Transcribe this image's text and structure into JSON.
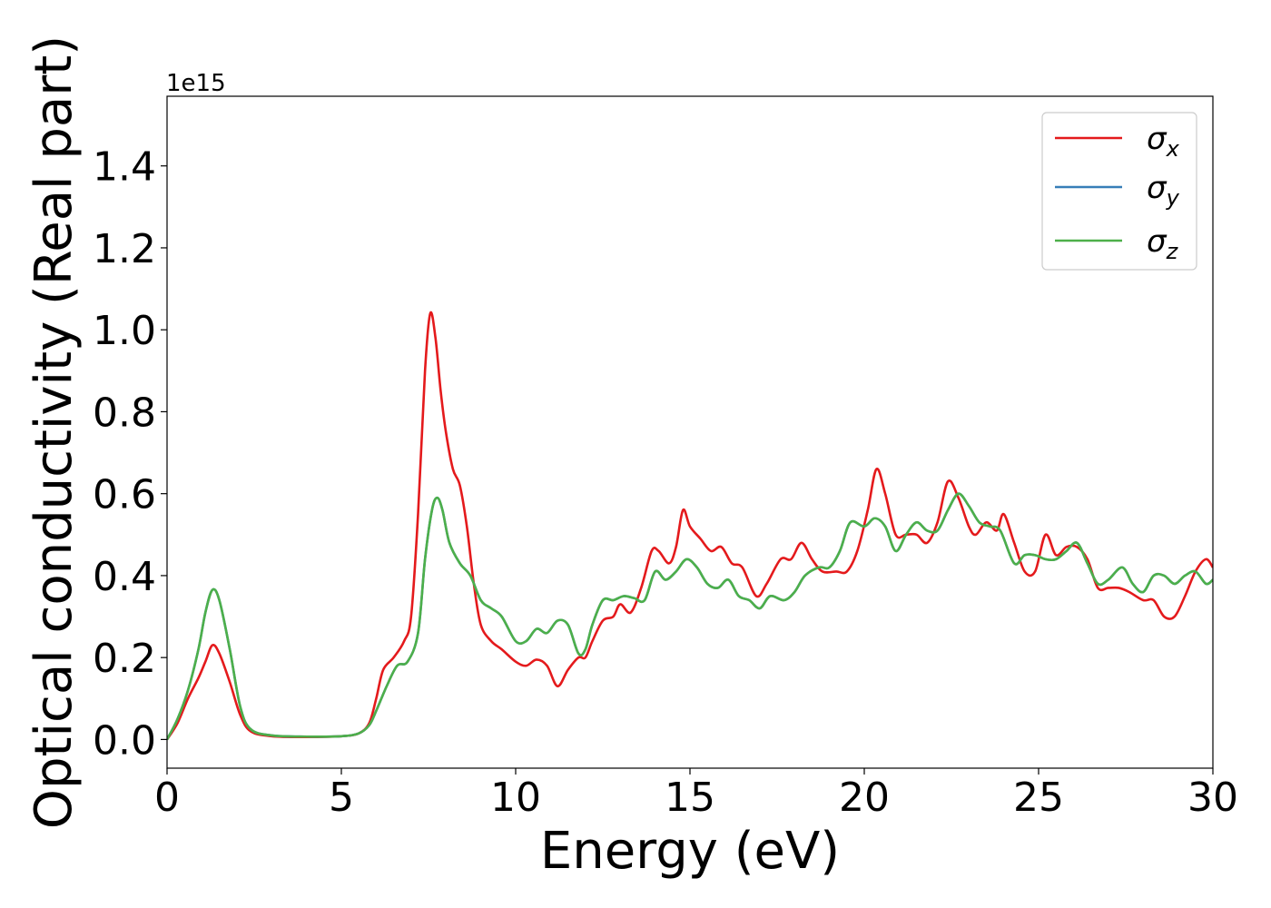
{
  "chart_data": {
    "type": "line",
    "xlabel": "Energy (eV)",
    "ylabel": "Optical conductivity (Real part)",
    "offset_text": "1e15",
    "y_scale_factor": 1000000000000000.0,
    "xlim": [
      0,
      30
    ],
    "ylim": [
      -0.07,
      1.57
    ],
    "x_ticks": [
      0,
      5,
      10,
      15,
      20,
      25,
      30
    ],
    "x_tick_labels": [
      "0",
      "5",
      "10",
      "15",
      "20",
      "25",
      "30"
    ],
    "y_ticks": [
      0.0,
      0.2,
      0.4,
      0.6,
      0.8,
      1.0,
      1.2,
      1.4
    ],
    "y_tick_labels": [
      "0.0",
      "0.2",
      "0.4",
      "0.6",
      "0.8",
      "1.0",
      "1.2",
      "1.4"
    ],
    "grid": false,
    "legend_position": "top-right",
    "series": [
      {
        "name": "σx",
        "label_base": "σ",
        "label_sub": "x",
        "color": "#e41a1c",
        "points": [
          [
            0,
            0
          ],
          [
            0.3,
            0.04
          ],
          [
            0.6,
            0.1
          ],
          [
            0.9,
            0.15
          ],
          [
            1.1,
            0.19
          ],
          [
            1.3,
            0.23
          ],
          [
            1.5,
            0.21
          ],
          [
            1.8,
            0.14
          ],
          [
            2.1,
            0.06
          ],
          [
            2.4,
            0.02
          ],
          [
            3,
            0.008
          ],
          [
            4,
            0.006
          ],
          [
            5,
            0.008
          ],
          [
            5.5,
            0.015
          ],
          [
            5.8,
            0.04
          ],
          [
            6.0,
            0.1
          ],
          [
            6.2,
            0.17
          ],
          [
            6.5,
            0.2
          ],
          [
            6.8,
            0.24
          ],
          [
            7.0,
            0.3
          ],
          [
            7.2,
            0.55
          ],
          [
            7.4,
            0.9
          ],
          [
            7.55,
            1.04
          ],
          [
            7.7,
            0.98
          ],
          [
            7.85,
            0.85
          ],
          [
            8.0,
            0.75
          ],
          [
            8.2,
            0.66
          ],
          [
            8.4,
            0.62
          ],
          [
            8.6,
            0.52
          ],
          [
            8.8,
            0.38
          ],
          [
            9.0,
            0.28
          ],
          [
            9.3,
            0.24
          ],
          [
            9.6,
            0.22
          ],
          [
            10.0,
            0.19
          ],
          [
            10.3,
            0.18
          ],
          [
            10.6,
            0.195
          ],
          [
            10.9,
            0.18
          ],
          [
            11.2,
            0.13
          ],
          [
            11.5,
            0.17
          ],
          [
            11.8,
            0.2
          ],
          [
            12.0,
            0.2
          ],
          [
            12.2,
            0.24
          ],
          [
            12.5,
            0.29
          ],
          [
            12.8,
            0.3
          ],
          [
            13.0,
            0.33
          ],
          [
            13.3,
            0.31
          ],
          [
            13.6,
            0.37
          ],
          [
            13.9,
            0.46
          ],
          [
            14.1,
            0.46
          ],
          [
            14.4,
            0.43
          ],
          [
            14.6,
            0.47
          ],
          [
            14.8,
            0.56
          ],
          [
            15.0,
            0.52
          ],
          [
            15.3,
            0.49
          ],
          [
            15.6,
            0.46
          ],
          [
            15.9,
            0.47
          ],
          [
            16.2,
            0.43
          ],
          [
            16.5,
            0.42
          ],
          [
            16.9,
            0.35
          ],
          [
            17.2,
            0.38
          ],
          [
            17.6,
            0.44
          ],
          [
            17.9,
            0.44
          ],
          [
            18.2,
            0.48
          ],
          [
            18.5,
            0.44
          ],
          [
            18.8,
            0.41
          ],
          [
            19.2,
            0.41
          ],
          [
            19.5,
            0.41
          ],
          [
            19.8,
            0.46
          ],
          [
            20.1,
            0.56
          ],
          [
            20.35,
            0.66
          ],
          [
            20.6,
            0.6
          ],
          [
            20.9,
            0.5
          ],
          [
            21.2,
            0.5
          ],
          [
            21.5,
            0.5
          ],
          [
            21.8,
            0.48
          ],
          [
            22.1,
            0.53
          ],
          [
            22.4,
            0.63
          ],
          [
            22.7,
            0.59
          ],
          [
            23.0,
            0.52
          ],
          [
            23.2,
            0.5
          ],
          [
            23.5,
            0.53
          ],
          [
            23.8,
            0.51
          ],
          [
            24.0,
            0.55
          ],
          [
            24.3,
            0.48
          ],
          [
            24.6,
            0.41
          ],
          [
            24.9,
            0.41
          ],
          [
            25.2,
            0.5
          ],
          [
            25.5,
            0.45
          ],
          [
            25.8,
            0.47
          ],
          [
            26.1,
            0.47
          ],
          [
            26.4,
            0.44
          ],
          [
            26.7,
            0.37
          ],
          [
            27.0,
            0.37
          ],
          [
            27.3,
            0.37
          ],
          [
            27.6,
            0.36
          ],
          [
            28.0,
            0.34
          ],
          [
            28.3,
            0.34
          ],
          [
            28.6,
            0.3
          ],
          [
            28.9,
            0.3
          ],
          [
            29.2,
            0.35
          ],
          [
            29.5,
            0.41
          ],
          [
            29.8,
            0.44
          ],
          [
            30,
            0.42
          ]
        ]
      },
      {
        "name": "σy",
        "label_base": "σ",
        "label_sub": "y",
        "color": "#377eb8",
        "points": [
          [
            0,
            0
          ],
          [
            0.3,
            0.05
          ],
          [
            0.6,
            0.12
          ],
          [
            0.9,
            0.22
          ],
          [
            1.1,
            0.31
          ],
          [
            1.3,
            0.365
          ],
          [
            1.5,
            0.34
          ],
          [
            1.8,
            0.22
          ],
          [
            2.1,
            0.08
          ],
          [
            2.4,
            0.025
          ],
          [
            3,
            0.01
          ],
          [
            4,
            0.007
          ],
          [
            5,
            0.008
          ],
          [
            5.5,
            0.015
          ],
          [
            5.8,
            0.035
          ],
          [
            6.0,
            0.07
          ],
          [
            6.3,
            0.13
          ],
          [
            6.6,
            0.18
          ],
          [
            6.9,
            0.19
          ],
          [
            7.2,
            0.26
          ],
          [
            7.4,
            0.44
          ],
          [
            7.6,
            0.56
          ],
          [
            7.75,
            0.59
          ],
          [
            7.9,
            0.56
          ],
          [
            8.1,
            0.48
          ],
          [
            8.4,
            0.43
          ],
          [
            8.7,
            0.4
          ],
          [
            9.0,
            0.34
          ],
          [
            9.3,
            0.32
          ],
          [
            9.6,
            0.3
          ],
          [
            10.0,
            0.24
          ],
          [
            10.3,
            0.24
          ],
          [
            10.6,
            0.27
          ],
          [
            10.9,
            0.26
          ],
          [
            11.2,
            0.29
          ],
          [
            11.5,
            0.28
          ],
          [
            11.8,
            0.21
          ],
          [
            12.0,
            0.22
          ],
          [
            12.2,
            0.28
          ],
          [
            12.5,
            0.34
          ],
          [
            12.8,
            0.34
          ],
          [
            13.1,
            0.35
          ],
          [
            13.4,
            0.345
          ],
          [
            13.7,
            0.34
          ],
          [
            14.0,
            0.41
          ],
          [
            14.3,
            0.39
          ],
          [
            14.6,
            0.41
          ],
          [
            14.9,
            0.44
          ],
          [
            15.2,
            0.42
          ],
          [
            15.5,
            0.38
          ],
          [
            15.8,
            0.37
          ],
          [
            16.1,
            0.39
          ],
          [
            16.4,
            0.35
          ],
          [
            16.7,
            0.34
          ],
          [
            17.0,
            0.32
          ],
          [
            17.3,
            0.35
          ],
          [
            17.7,
            0.34
          ],
          [
            18.0,
            0.36
          ],
          [
            18.3,
            0.4
          ],
          [
            18.7,
            0.42
          ],
          [
            19.0,
            0.42
          ],
          [
            19.3,
            0.46
          ],
          [
            19.6,
            0.53
          ],
          [
            20.0,
            0.52
          ],
          [
            20.3,
            0.54
          ],
          [
            20.6,
            0.52
          ],
          [
            20.9,
            0.46
          ],
          [
            21.2,
            0.5
          ],
          [
            21.5,
            0.53
          ],
          [
            21.8,
            0.51
          ],
          [
            22.1,
            0.51
          ],
          [
            22.4,
            0.56
          ],
          [
            22.7,
            0.6
          ],
          [
            23.0,
            0.57
          ],
          [
            23.3,
            0.53
          ],
          [
            23.6,
            0.52
          ],
          [
            23.9,
            0.51
          ],
          [
            24.3,
            0.43
          ],
          [
            24.6,
            0.45
          ],
          [
            24.9,
            0.45
          ],
          [
            25.2,
            0.44
          ],
          [
            25.5,
            0.44
          ],
          [
            25.8,
            0.46
          ],
          [
            26.1,
            0.48
          ],
          [
            26.4,
            0.43
          ],
          [
            26.7,
            0.38
          ],
          [
            27.0,
            0.39
          ],
          [
            27.4,
            0.42
          ],
          [
            27.7,
            0.38
          ],
          [
            28.0,
            0.36
          ],
          [
            28.3,
            0.4
          ],
          [
            28.6,
            0.4
          ],
          [
            28.9,
            0.38
          ],
          [
            29.2,
            0.4
          ],
          [
            29.5,
            0.41
          ],
          [
            29.8,
            0.38
          ],
          [
            30,
            0.39
          ]
        ]
      },
      {
        "name": "σz",
        "label_base": "σ",
        "label_sub": "z",
        "color": "#4daf4a",
        "points": [
          [
            0,
            0
          ],
          [
            0.3,
            0.05
          ],
          [
            0.6,
            0.12
          ],
          [
            0.9,
            0.22
          ],
          [
            1.1,
            0.31
          ],
          [
            1.3,
            0.365
          ],
          [
            1.5,
            0.34
          ],
          [
            1.8,
            0.22
          ],
          [
            2.1,
            0.08
          ],
          [
            2.4,
            0.025
          ],
          [
            3,
            0.01
          ],
          [
            4,
            0.007
          ],
          [
            5,
            0.008
          ],
          [
            5.5,
            0.015
          ],
          [
            5.8,
            0.035
          ],
          [
            6.0,
            0.07
          ],
          [
            6.3,
            0.13
          ],
          [
            6.6,
            0.18
          ],
          [
            6.9,
            0.19
          ],
          [
            7.2,
            0.26
          ],
          [
            7.4,
            0.44
          ],
          [
            7.6,
            0.56
          ],
          [
            7.75,
            0.59
          ],
          [
            7.9,
            0.56
          ],
          [
            8.1,
            0.48
          ],
          [
            8.4,
            0.43
          ],
          [
            8.7,
            0.4
          ],
          [
            9.0,
            0.34
          ],
          [
            9.3,
            0.32
          ],
          [
            9.6,
            0.3
          ],
          [
            10.0,
            0.24
          ],
          [
            10.3,
            0.24
          ],
          [
            10.6,
            0.27
          ],
          [
            10.9,
            0.26
          ],
          [
            11.2,
            0.29
          ],
          [
            11.5,
            0.28
          ],
          [
            11.8,
            0.21
          ],
          [
            12.0,
            0.22
          ],
          [
            12.2,
            0.28
          ],
          [
            12.5,
            0.34
          ],
          [
            12.8,
            0.34
          ],
          [
            13.1,
            0.35
          ],
          [
            13.4,
            0.345
          ],
          [
            13.7,
            0.34
          ],
          [
            14.0,
            0.41
          ],
          [
            14.3,
            0.39
          ],
          [
            14.6,
            0.41
          ],
          [
            14.9,
            0.44
          ],
          [
            15.2,
            0.42
          ],
          [
            15.5,
            0.38
          ],
          [
            15.8,
            0.37
          ],
          [
            16.1,
            0.39
          ],
          [
            16.4,
            0.35
          ],
          [
            16.7,
            0.34
          ],
          [
            17.0,
            0.32
          ],
          [
            17.3,
            0.35
          ],
          [
            17.7,
            0.34
          ],
          [
            18.0,
            0.36
          ],
          [
            18.3,
            0.4
          ],
          [
            18.7,
            0.42
          ],
          [
            19.0,
            0.42
          ],
          [
            19.3,
            0.46
          ],
          [
            19.6,
            0.53
          ],
          [
            20.0,
            0.52
          ],
          [
            20.3,
            0.54
          ],
          [
            20.6,
            0.52
          ],
          [
            20.9,
            0.46
          ],
          [
            21.2,
            0.5
          ],
          [
            21.5,
            0.53
          ],
          [
            21.8,
            0.51
          ],
          [
            22.1,
            0.51
          ],
          [
            22.4,
            0.56
          ],
          [
            22.7,
            0.6
          ],
          [
            23.0,
            0.57
          ],
          [
            23.3,
            0.53
          ],
          [
            23.6,
            0.52
          ],
          [
            23.9,
            0.51
          ],
          [
            24.3,
            0.43
          ],
          [
            24.6,
            0.45
          ],
          [
            24.9,
            0.45
          ],
          [
            25.2,
            0.44
          ],
          [
            25.5,
            0.44
          ],
          [
            25.8,
            0.46
          ],
          [
            26.1,
            0.48
          ],
          [
            26.4,
            0.43
          ],
          [
            26.7,
            0.38
          ],
          [
            27.0,
            0.39
          ],
          [
            27.4,
            0.42
          ],
          [
            27.7,
            0.38
          ],
          [
            28.0,
            0.36
          ],
          [
            28.3,
            0.4
          ],
          [
            28.6,
            0.4
          ],
          [
            28.9,
            0.38
          ],
          [
            29.2,
            0.4
          ],
          [
            29.5,
            0.41
          ],
          [
            29.8,
            0.38
          ],
          [
            30,
            0.39
          ]
        ]
      }
    ]
  }
}
